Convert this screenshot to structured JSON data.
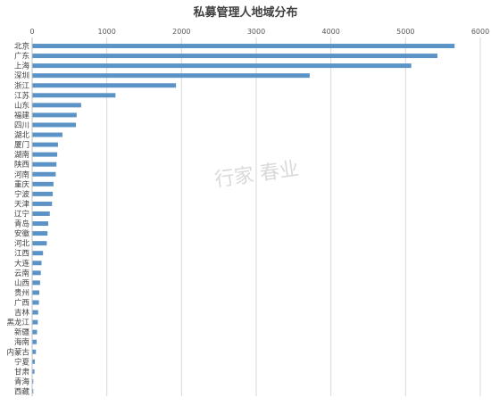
{
  "chart_data": {
    "type": "bar",
    "orientation": "horizontal",
    "title": "私募管理人地域分布",
    "categories": [
      "北京",
      "广东",
      "上海",
      "深圳",
      "浙江",
      "江苏",
      "山东",
      "福建",
      "四川",
      "湖北",
      "厦门",
      "湖南",
      "陕西",
      "河南",
      "重庆",
      "宁波",
      "天津",
      "辽宁",
      "青岛",
      "安徽",
      "河北",
      "江西",
      "大连",
      "云南",
      "山西",
      "贵州",
      "广西",
      "吉林",
      "黑龙江",
      "新疆",
      "海南",
      "内蒙古",
      "宁夏",
      "甘肃",
      "青海",
      "西藏"
    ],
    "values": [
      5650,
      5420,
      5070,
      3710,
      1920,
      1110,
      650,
      590,
      580,
      400,
      340,
      330,
      320,
      310,
      280,
      270,
      260,
      230,
      210,
      200,
      190,
      140,
      120,
      110,
      100,
      90,
      85,
      75,
      70,
      60,
      55,
      45,
      30,
      25,
      8,
      4
    ],
    "xlim": [
      0,
      6000
    ],
    "xticks": [
      0,
      1000,
      2000,
      3000,
      4000,
      5000,
      6000
    ],
    "xtick_labels": [
      "0",
      "1000",
      "2000",
      "3000",
      "4000",
      "5000",
      "6000"
    ],
    "xaxis_position": "top",
    "grid": true,
    "bar_color": "#5b93c7",
    "watermark": "行家 春业"
  }
}
